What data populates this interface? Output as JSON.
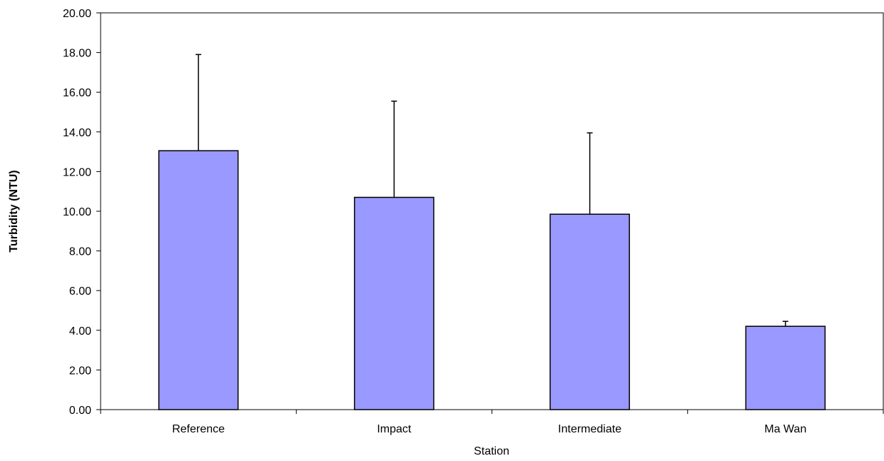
{
  "chart_data": {
    "type": "bar",
    "title": "",
    "xlabel": "Station",
    "ylabel": "Turbidity (NTU)",
    "categories": [
      "Reference",
      "Impact",
      "Intermediate",
      "Ma Wan"
    ],
    "series": [
      {
        "values": [
          13.05,
          10.7,
          9.85,
          4.2
        ],
        "error_plus": [
          4.85,
          4.85,
          4.1,
          0.25
        ]
      }
    ],
    "ylim": [
      0,
      20
    ],
    "yticks": [
      "0.00",
      "2.00",
      "4.00",
      "6.00",
      "8.00",
      "10.00",
      "12.00",
      "14.00",
      "16.00",
      "18.00",
      "20.00"
    ],
    "grid": false,
    "legend": "none",
    "colors": {
      "bar_fill": "#9999ff",
      "bar_stroke": "#000000",
      "axis": "#000000",
      "background": "#ffffff"
    }
  }
}
